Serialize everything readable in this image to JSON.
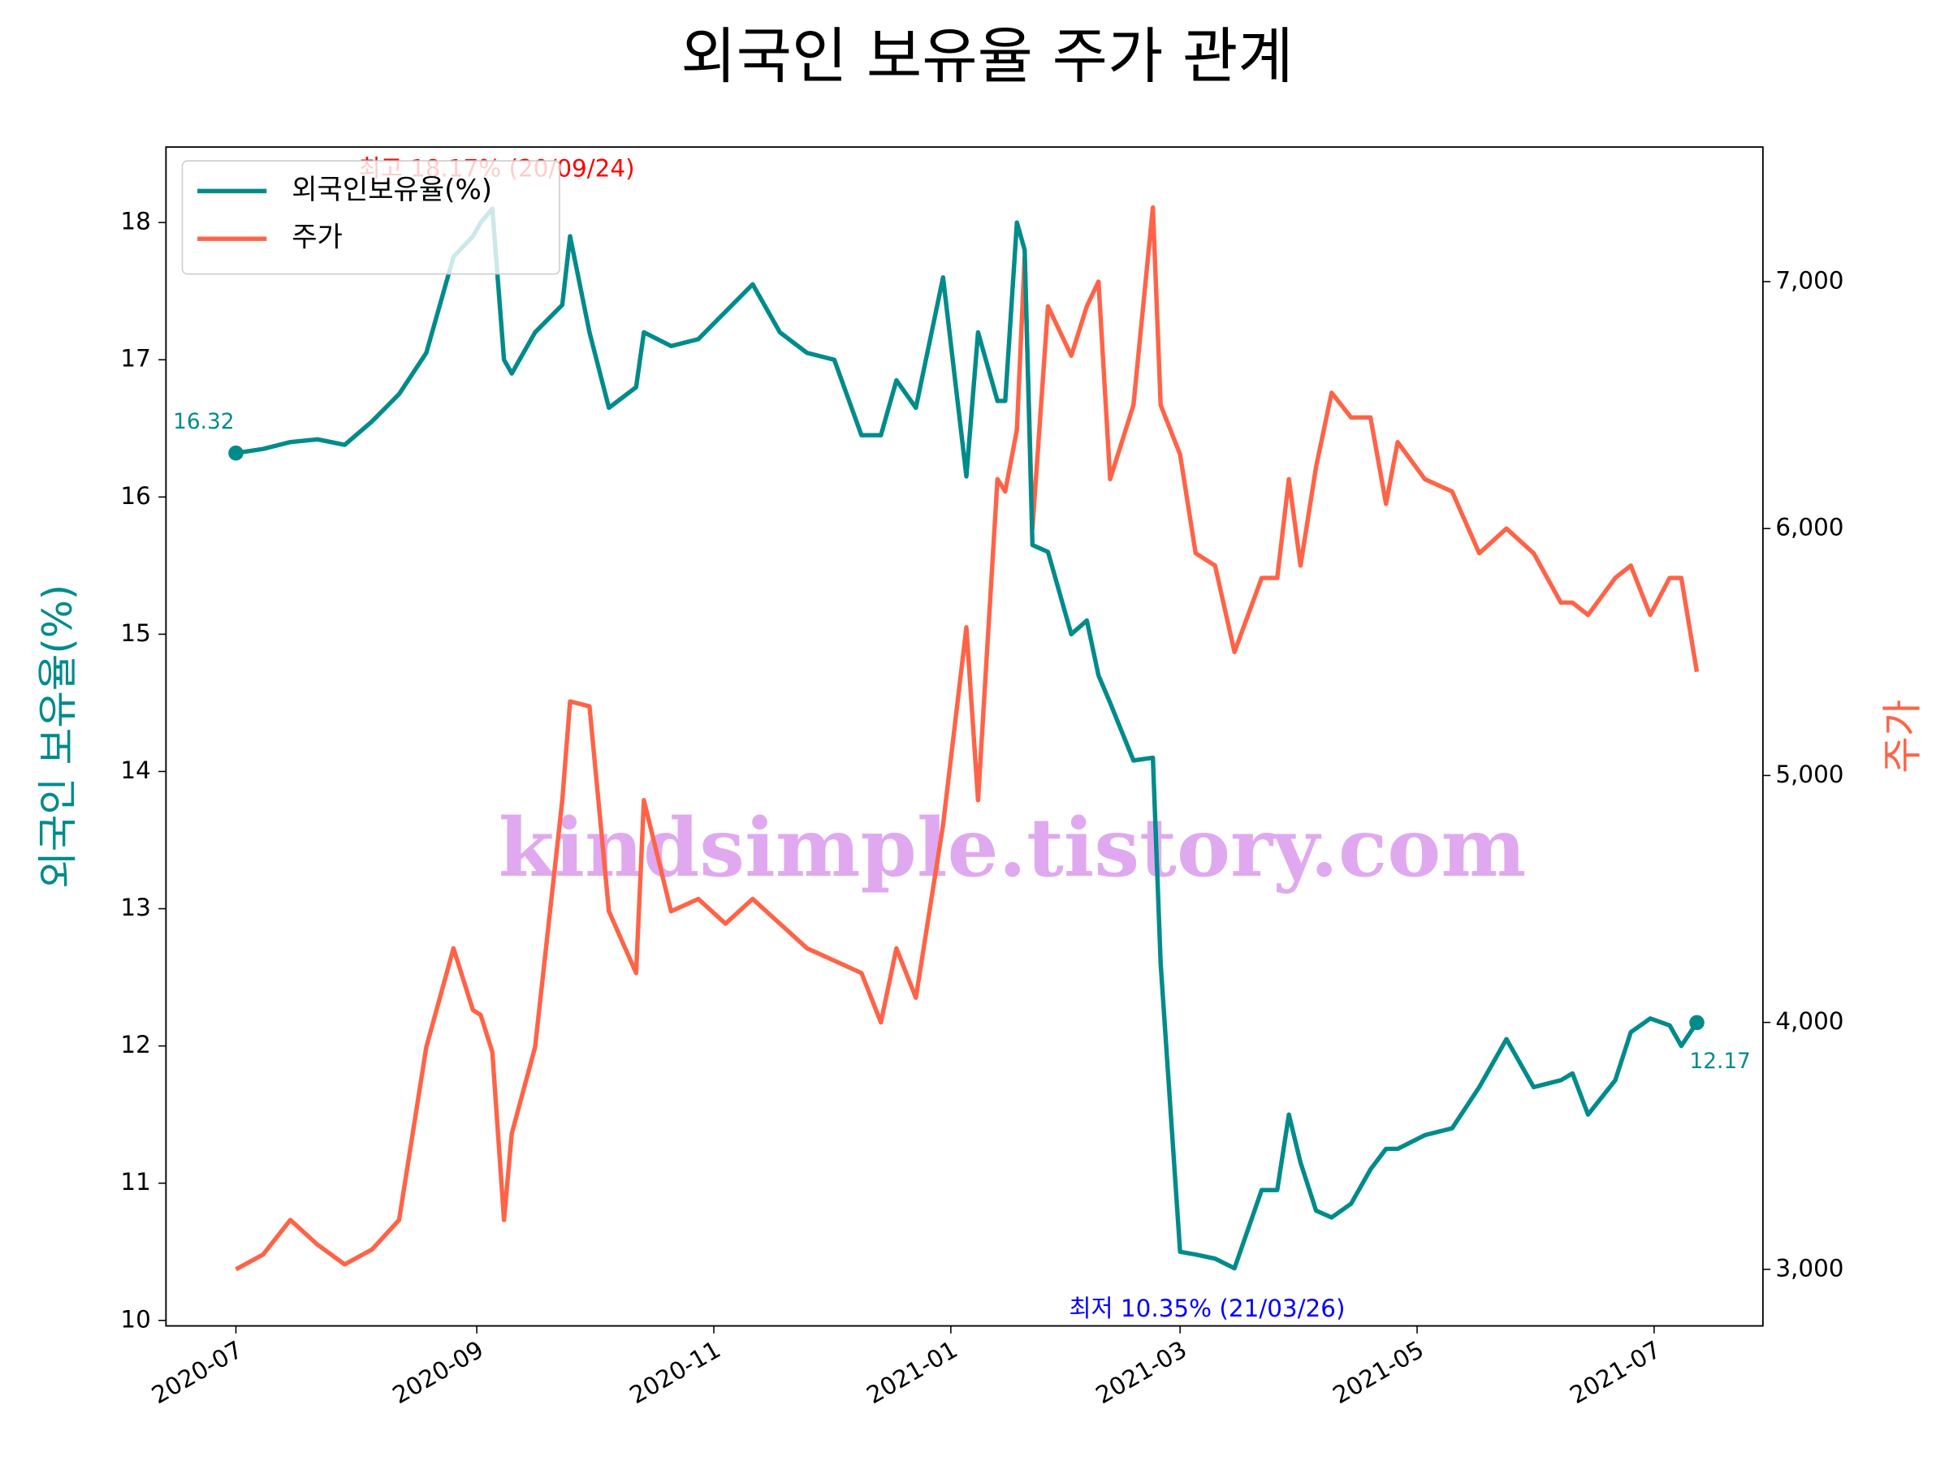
{
  "chart_data": {
    "type": "line",
    "title": "외국인 보유율 주가 관계",
    "ylabel": "외국인 보유율(%)",
    "y2label": "주가",
    "x": [
      "2020-07-01",
      "2020-07-08",
      "2020-07-15",
      "2020-07-22",
      "2020-07-29",
      "2020-08-05",
      "2020-08-12",
      "2020-08-19",
      "2020-08-26",
      "2020-08-31",
      "2020-09-02",
      "2020-09-05",
      "2020-09-08",
      "2020-09-10",
      "2020-09-16",
      "2020-09-23",
      "2020-09-25",
      "2020-09-30",
      "2020-10-05",
      "2020-10-12",
      "2020-10-14",
      "2020-10-21",
      "2020-10-28",
      "2020-11-04",
      "2020-11-11",
      "2020-11-18",
      "2020-11-25",
      "2020-12-02",
      "2020-12-09",
      "2020-12-14",
      "2020-12-18",
      "2020-12-23",
      "2020-12-30",
      "2021-01-05",
      "2021-01-08",
      "2021-01-13",
      "2021-01-15",
      "2021-01-18",
      "2021-01-20",
      "2021-01-22",
      "2021-01-26",
      "2021-02-01",
      "2021-02-05",
      "2021-02-08",
      "2021-02-11",
      "2021-02-17",
      "2021-02-22",
      "2021-02-24",
      "2021-03-01",
      "2021-03-05",
      "2021-03-10",
      "2021-03-15",
      "2021-03-22",
      "2021-03-26",
      "2021-03-29",
      "2021-04-01",
      "2021-04-05",
      "2021-04-09",
      "2021-04-14",
      "2021-04-19",
      "2021-04-23",
      "2021-04-26",
      "2021-05-03",
      "2021-05-10",
      "2021-05-17",
      "2021-05-24",
      "2021-05-31",
      "2021-06-07",
      "2021-06-10",
      "2021-06-14",
      "2021-06-21",
      "2021-06-25",
      "2021-06-30",
      "2021-07-05",
      "2021-07-08",
      "2021-07-12"
    ],
    "series": [
      {
        "name": "외국인보유율(%)",
        "color": "#008b8b",
        "axis": "y",
        "values": [
          16.32,
          16.35,
          16.4,
          16.42,
          16.38,
          16.55,
          16.75,
          17.05,
          17.75,
          17.9,
          18.0,
          18.1,
          17.0,
          16.9,
          17.2,
          17.4,
          17.9,
          17.2,
          16.65,
          16.8,
          17.2,
          17.1,
          17.15,
          17.35,
          17.55,
          17.2,
          17.05,
          17.0,
          16.45,
          16.45,
          16.85,
          16.65,
          17.6,
          16.15,
          17.2,
          16.7,
          16.7,
          18.0,
          17.8,
          15.65,
          15.6,
          15.0,
          15.1,
          14.7,
          14.5,
          14.08,
          14.1,
          12.6,
          10.5,
          10.48,
          10.45,
          10.38,
          10.95,
          10.95,
          11.5,
          11.15,
          10.8,
          10.75,
          10.85,
          11.1,
          11.25,
          11.25,
          11.35,
          11.4,
          11.7,
          12.05,
          11.7,
          11.75,
          11.8,
          11.5,
          11.75,
          12.1,
          12.2,
          12.15,
          12.0,
          12.17
        ]
      },
      {
        "name": "주가",
        "color": "#ff6347",
        "axis": "y2",
        "values": [
          3000,
          3060,
          3200,
          3100,
          3020,
          3080,
          3200,
          3900,
          4300,
          4050,
          4030,
          3880,
          3200,
          3550,
          3900,
          4900,
          5300,
          5280,
          4450,
          4200,
          4900,
          4450,
          4500,
          4400,
          4500,
          4400,
          4300,
          4250,
          4200,
          4000,
          4300,
          4100,
          4800,
          5600,
          4900,
          6200,
          6150,
          6400,
          7100,
          6000,
          6900,
          6700,
          6900,
          7000,
          6200,
          6500,
          7300,
          6500,
          6300,
          5900,
          5850,
          5500,
          5800,
          5800,
          6200,
          5850,
          6250,
          6550,
          6450,
          6450,
          6100,
          6350,
          6200,
          6150,
          5900,
          6000,
          5900,
          5700,
          5700,
          5650,
          5800,
          5850,
          5650,
          5800,
          5800,
          5420
        ]
      }
    ],
    "xlim": [
      "2020-06-13",
      "2021-07-29"
    ],
    "xticks": [
      {
        "value": "2020-07-01",
        "label": "2020-07"
      },
      {
        "value": "2020-09-01",
        "label": "2020-09"
      },
      {
        "value": "2020-11-01",
        "label": "2020-11"
      },
      {
        "value": "2021-01-01",
        "label": "2021-01"
      },
      {
        "value": "2021-03-01",
        "label": "2021-03"
      },
      {
        "value": "2021-05-01",
        "label": "2021-05"
      },
      {
        "value": "2021-07-01",
        "label": "2021-07"
      }
    ],
    "ylim": [
      9.96,
      18.55
    ],
    "yticks": [
      10,
      11,
      12,
      13,
      14,
      15,
      16,
      17,
      18
    ],
    "y2lim": [
      2771,
      7545
    ],
    "y2ticks": [
      {
        "value": 3000,
        "label": "3,000"
      },
      {
        "value": 4000,
        "label": "4,000"
      },
      {
        "value": 5000,
        "label": "5,000"
      },
      {
        "value": 6000,
        "label": "6,000"
      },
      {
        "value": 7000,
        "label": "7,000"
      }
    ],
    "legend": "upper left",
    "annotations": [
      {
        "text": "최고 18.17% (20/09/24)",
        "color": "#ff0000"
      },
      {
        "text": "최저 10.35% (21/03/26)",
        "color": "#0000ff"
      },
      {
        "text": "16.32",
        "color": "#008b8b"
      },
      {
        "text": "12.17",
        "color": "#008b8b"
      }
    ],
    "watermark": "kindsimple.tistory.com"
  }
}
